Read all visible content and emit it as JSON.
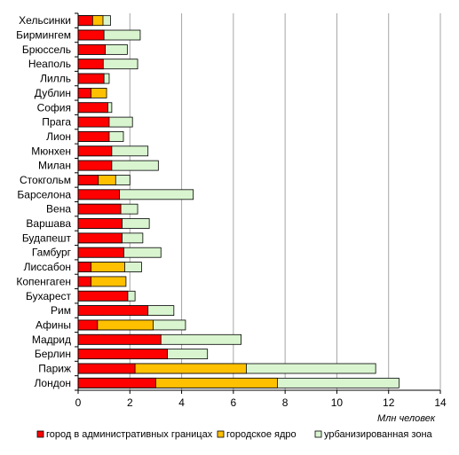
{
  "chart_data": {
    "type": "bar",
    "orientation": "horizontal",
    "stacked": false,
    "categories": [
      "Хельсинки",
      "Бирмингем",
      "Брюссель",
      "Неаполь",
      "Лилль",
      "Дублин",
      "София",
      "Прага",
      "Лион",
      "Мюнхен",
      "Милан",
      "Стокгольм",
      "Барселона",
      "Вена",
      "Варшава",
      "Будапешт",
      "Гамбург",
      "Лиссабон",
      "Копенгаген",
      "Бухарест",
      "Рим",
      "Афины",
      "Мадрид",
      "Берлин",
      "Париж",
      "Лондон"
    ],
    "series": [
      {
        "name": "город в административных границах",
        "color": "#ff0000",
        "values": [
          0.56,
          1.0,
          1.05,
          0.97,
          1.0,
          0.5,
          1.15,
          1.2,
          1.2,
          1.3,
          1.3,
          0.78,
          1.6,
          1.65,
          1.7,
          1.7,
          1.77,
          0.5,
          0.5,
          1.92,
          2.7,
          0.75,
          3.2,
          3.45,
          2.2,
          3.0
        ]
      },
      {
        "name": "городское ядро",
        "color": "#ffc000",
        "values": [
          0.96,
          null,
          null,
          null,
          null,
          1.1,
          null,
          null,
          null,
          null,
          null,
          1.45,
          null,
          null,
          null,
          null,
          null,
          1.8,
          1.85,
          null,
          null,
          2.9,
          null,
          null,
          6.5,
          7.7
        ]
      },
      {
        "name": "урбанизированная зона",
        "color": "#d9f5d0",
        "values": [
          1.25,
          2.4,
          1.9,
          2.3,
          1.2,
          null,
          1.3,
          2.1,
          1.75,
          2.7,
          3.1,
          2.0,
          4.45,
          2.3,
          2.75,
          2.5,
          3.2,
          2.45,
          null,
          2.2,
          3.7,
          4.15,
          6.3,
          5.0,
          11.5,
          12.4
        ]
      }
    ],
    "draw_order": [
      "урбанизированная зона",
      "городское ядро",
      "город в административных границах"
    ],
    "xlabel": "Млн человек",
    "xlim": [
      0,
      14
    ],
    "xticks": [
      0,
      2,
      4,
      6,
      8,
      10,
      12,
      14
    ],
    "grid": true,
    "legend_position": "bottom"
  }
}
